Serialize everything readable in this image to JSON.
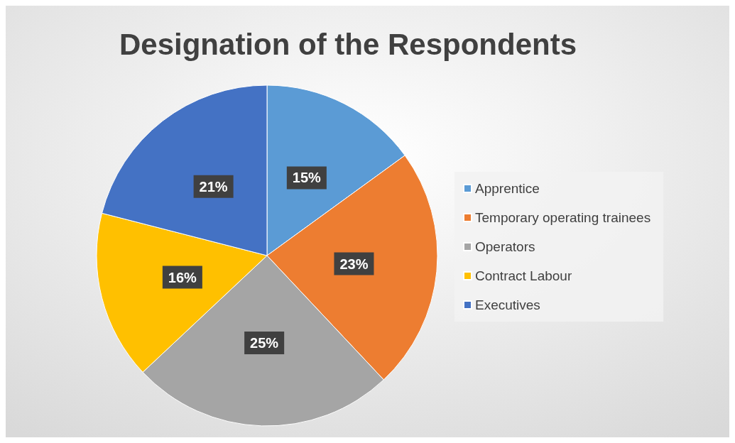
{
  "chart_data": {
    "type": "pie",
    "title": "Designation of the Respondents",
    "categories": [
      "Apprentice",
      "Temporary operating trainees",
      "Operators",
      "Contract Labour",
      "Executives"
    ],
    "values": [
      15,
      23,
      25,
      16,
      21
    ],
    "colors": [
      "#5b9bd5",
      "#ed7d31",
      "#a5a5a5",
      "#ffc000",
      "#4472c4"
    ],
    "value_labels": [
      "15%",
      "23%",
      "25%",
      "16%",
      "21%"
    ],
    "legend": "right"
  }
}
